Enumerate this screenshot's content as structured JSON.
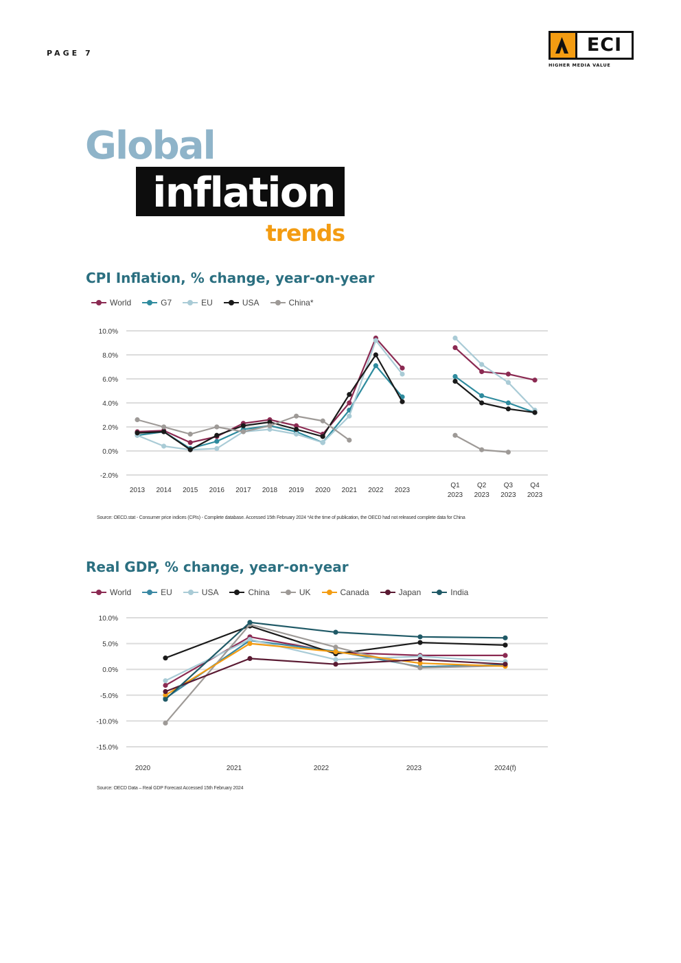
{
  "page": {
    "label": "PAGE 7"
  },
  "logo": {
    "text": "ECI",
    "tagline": "HIGHER MEDIA VALUE"
  },
  "title": {
    "line1": "Global",
    "line2": "inflation",
    "line3": "trends"
  },
  "colors": {
    "world": "#8b2a52",
    "g7": "#2e8b9e",
    "eu": "#a9cbd6",
    "usa": "#1a1a1a",
    "china": "#9e9a97",
    "canada": "#f39c12",
    "japan": "#5a1a32",
    "india": "#1f5966",
    "eu_gdp": "#3a88a3",
    "usa_gdp": "#a9cbd6"
  },
  "chart_data": [
    {
      "type": "line",
      "title": "CPI Inflation, % change, year-on-year",
      "source": "Source: OECD.stat - Consumer price indices (CPIs) - Complete database. Accessed 15th February 2024 *At the time of publication, the OECD had not released complete data for China",
      "y_ticks": [
        "10.0%",
        "8.0%",
        "6.0%",
        "4.0%",
        "2.0%",
        "0.0%",
        "-2.0%"
      ],
      "ylim": [
        -2,
        10
      ],
      "annual": {
        "categories": [
          "2013",
          "2014",
          "2015",
          "2016",
          "2017",
          "2018",
          "2019",
          "2020",
          "2021",
          "2022",
          "2023"
        ],
        "series": [
          {
            "name": "World",
            "color": "#8b2a52",
            "values": [
              1.6,
              1.7,
              0.7,
              1.2,
              2.3,
              2.6,
              2.1,
              1.4,
              4.0,
              9.4,
              6.9
            ]
          },
          {
            "name": "G7",
            "color": "#2e8b9e",
            "values": [
              1.3,
              1.6,
              0.2,
              0.8,
              1.8,
              2.1,
              1.6,
              0.7,
              3.4,
              7.1,
              4.5
            ]
          },
          {
            "name": "EU",
            "color": "#a9cbd6",
            "values": [
              1.3,
              0.4,
              0.1,
              0.2,
              1.6,
              1.8,
              1.4,
              0.7,
              2.9,
              9.2,
              6.4
            ]
          },
          {
            "name": "USA",
            "color": "#1a1a1a",
            "values": [
              1.5,
              1.6,
              0.1,
              1.3,
              2.1,
              2.4,
              1.8,
              1.2,
              4.7,
              8.0,
              4.1
            ]
          },
          {
            "name": "China*",
            "color": "#9e9a97",
            "values": [
              2.6,
              2.0,
              1.4,
              2.0,
              1.6,
              2.1,
              2.9,
              2.5,
              0.9,
              null,
              null
            ]
          }
        ]
      },
      "quarterly": {
        "categories": [
          [
            "Q1",
            "2023"
          ],
          [
            "Q2",
            "2023"
          ],
          [
            "Q3",
            "2023"
          ],
          [
            "Q4",
            "2023"
          ]
        ],
        "series": [
          {
            "name": "World",
            "color": "#8b2a52",
            "values": [
              8.6,
              6.6,
              6.4,
              5.9
            ]
          },
          {
            "name": "G7",
            "color": "#2e8b9e",
            "values": [
              6.2,
              4.6,
              4.0,
              3.2
            ]
          },
          {
            "name": "EU",
            "color": "#a9cbd6",
            "values": [
              9.4,
              7.2,
              5.7,
              3.4
            ]
          },
          {
            "name": "USA",
            "color": "#1a1a1a",
            "values": [
              5.8,
              4.0,
              3.5,
              3.2
            ]
          },
          {
            "name": "China*",
            "color": "#9e9a97",
            "values": [
              1.3,
              0.1,
              -0.1,
              null
            ]
          }
        ]
      }
    },
    {
      "type": "line",
      "title": "Real GDP, % change, year-on-year",
      "source": "Source: OECD Data – Real GDP Forecast Accessed 15th February 2024",
      "y_ticks": [
        "10.0%",
        "5.0%",
        "0.0%",
        "-5.0%",
        "-10.0%",
        "-15.0%"
      ],
      "ylim": [
        -15,
        10
      ],
      "categories": [
        "2020",
        "2021",
        "2022",
        "2023",
        "2024(f)"
      ],
      "series": [
        {
          "name": "World",
          "color": "#8b2a52",
          "values": [
            -3.1,
            6.3,
            3.3,
            2.7,
            2.7
          ]
        },
        {
          "name": "EU",
          "color": "#3a88a3",
          "values": [
            -5.6,
            5.6,
            3.5,
            0.5,
            0.9
          ]
        },
        {
          "name": "USA",
          "color": "#a9cbd6",
          "values": [
            -2.2,
            5.8,
            1.9,
            2.5,
            1.5
          ]
        },
        {
          "name": "China",
          "color": "#1a1a1a",
          "values": [
            2.2,
            8.4,
            3.0,
            5.2,
            4.7
          ]
        },
        {
          "name": "UK",
          "color": "#9e9a97",
          "values": [
            -10.4,
            8.7,
            4.3,
            0.3,
            0.7
          ]
        },
        {
          "name": "Canada",
          "color": "#f39c12",
          "values": [
            -5.0,
            5.0,
            3.4,
            1.2,
            0.6
          ]
        },
        {
          "name": "Japan",
          "color": "#5a1a32",
          "values": [
            -4.3,
            2.1,
            1.0,
            1.9,
            1.0
          ]
        },
        {
          "name": "India",
          "color": "#1f5966",
          "values": [
            -5.8,
            9.1,
            7.2,
            6.3,
            6.1
          ]
        }
      ]
    }
  ]
}
